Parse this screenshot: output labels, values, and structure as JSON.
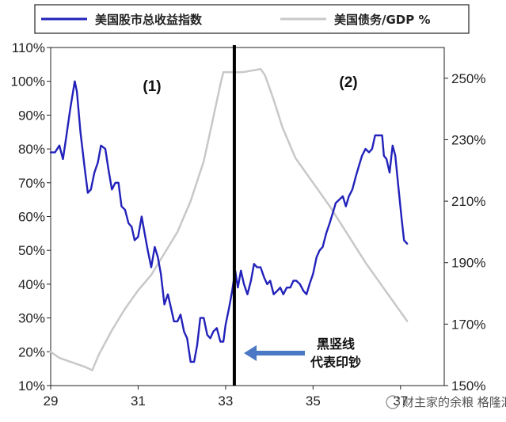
{
  "chart_data": {
    "type": "line",
    "legend": [
      {
        "label": "美国股市总收益指数",
        "color": "#2222bb"
      },
      {
        "label": "美国债务/GDP %",
        "color": "#c8c8c8"
      }
    ],
    "x": {
      "min": 29,
      "max": 38,
      "ticks": [
        "29",
        "31",
        "33",
        "35",
        "37"
      ],
      "tick_values": [
        29,
        31,
        33,
        35,
        37
      ]
    },
    "y_left": {
      "min": 10,
      "max": 110,
      "ticks": [
        "10%",
        "20%",
        "30%",
        "40%",
        "50%",
        "60%",
        "70%",
        "80%",
        "90%",
        "100%",
        "110%"
      ],
      "tick_values": [
        10,
        20,
        30,
        40,
        50,
        60,
        70,
        80,
        90,
        100,
        110
      ]
    },
    "y_right": {
      "min": 150,
      "max": 260,
      "ticks": [
        "150%",
        "170%",
        "190%",
        "210%",
        "230%",
        "250%"
      ],
      "tick_values": [
        150,
        170,
        190,
        210,
        230,
        250
      ]
    },
    "series": [
      {
        "name": "美国股市总收益指数",
        "axis": "left",
        "color": "#2222bb",
        "points": [
          [
            29.0,
            79
          ],
          [
            29.1,
            79
          ],
          [
            29.2,
            81
          ],
          [
            29.28,
            77
          ],
          [
            29.35,
            83
          ],
          [
            29.45,
            92
          ],
          [
            29.55,
            100
          ],
          [
            29.6,
            97
          ],
          [
            29.68,
            85
          ],
          [
            29.78,
            74
          ],
          [
            29.85,
            67
          ],
          [
            29.92,
            68
          ],
          [
            30.0,
            73
          ],
          [
            30.08,
            76
          ],
          [
            30.15,
            81
          ],
          [
            30.25,
            80
          ],
          [
            30.32,
            74
          ],
          [
            30.4,
            68
          ],
          [
            30.48,
            70
          ],
          [
            30.55,
            70
          ],
          [
            30.62,
            63
          ],
          [
            30.7,
            62
          ],
          [
            30.78,
            58
          ],
          [
            30.85,
            57
          ],
          [
            30.92,
            53
          ],
          [
            31.0,
            54
          ],
          [
            31.08,
            60
          ],
          [
            31.15,
            55
          ],
          [
            31.22,
            50
          ],
          [
            31.3,
            45
          ],
          [
            31.38,
            51
          ],
          [
            31.45,
            48
          ],
          [
            31.52,
            43
          ],
          [
            31.6,
            34
          ],
          [
            31.68,
            37
          ],
          [
            31.75,
            33
          ],
          [
            31.82,
            29
          ],
          [
            31.9,
            29
          ],
          [
            31.97,
            31
          ],
          [
            32.05,
            26
          ],
          [
            32.12,
            24
          ],
          [
            32.2,
            17
          ],
          [
            32.28,
            17
          ],
          [
            32.35,
            22
          ],
          [
            32.42,
            30
          ],
          [
            32.5,
            30
          ],
          [
            32.58,
            25
          ],
          [
            32.65,
            24
          ],
          [
            32.72,
            26
          ],
          [
            32.8,
            27
          ],
          [
            32.88,
            23
          ],
          [
            32.95,
            23
          ],
          [
            33.0,
            28
          ],
          [
            33.08,
            33
          ],
          [
            33.15,
            38
          ],
          [
            33.22,
            44
          ],
          [
            33.28,
            39
          ],
          [
            33.35,
            44
          ],
          [
            33.42,
            40
          ],
          [
            33.5,
            37
          ],
          [
            33.58,
            41
          ],
          [
            33.65,
            46
          ],
          [
            33.72,
            45
          ],
          [
            33.8,
            45
          ],
          [
            33.88,
            42
          ],
          [
            33.95,
            40
          ],
          [
            34.02,
            41
          ],
          [
            34.1,
            37
          ],
          [
            34.18,
            38
          ],
          [
            34.25,
            39
          ],
          [
            34.32,
            37
          ],
          [
            34.4,
            39
          ],
          [
            34.48,
            39
          ],
          [
            34.55,
            41
          ],
          [
            34.62,
            41
          ],
          [
            34.7,
            40
          ],
          [
            34.78,
            38
          ],
          [
            34.85,
            37
          ],
          [
            34.92,
            40
          ],
          [
            35.0,
            43
          ],
          [
            35.08,
            48
          ],
          [
            35.15,
            50
          ],
          [
            35.22,
            51
          ],
          [
            35.3,
            55
          ],
          [
            35.38,
            58
          ],
          [
            35.45,
            61
          ],
          [
            35.52,
            64
          ],
          [
            35.6,
            65
          ],
          [
            35.68,
            66
          ],
          [
            35.75,
            63
          ],
          [
            35.82,
            66
          ],
          [
            35.9,
            68
          ],
          [
            35.98,
            72
          ],
          [
            36.05,
            75
          ],
          [
            36.12,
            78
          ],
          [
            36.2,
            80
          ],
          [
            36.28,
            79
          ],
          [
            36.35,
            80
          ],
          [
            36.42,
            84
          ],
          [
            36.5,
            84
          ],
          [
            36.58,
            84
          ],
          [
            36.62,
            78
          ],
          [
            36.68,
            77
          ],
          [
            36.75,
            73
          ],
          [
            36.82,
            81
          ],
          [
            36.88,
            78
          ],
          [
            36.95,
            69
          ],
          [
            37.02,
            60
          ],
          [
            37.08,
            53
          ],
          [
            37.15,
            52
          ]
        ]
      },
      {
        "name": "美国债务/GDP %",
        "axis": "right",
        "color": "#c8c8c8",
        "points": [
          [
            29.0,
            161
          ],
          [
            29.2,
            159
          ],
          [
            29.4,
            158
          ],
          [
            29.6,
            157
          ],
          [
            29.8,
            156
          ],
          [
            29.95,
            155
          ],
          [
            30.1,
            160
          ],
          [
            30.4,
            168
          ],
          [
            30.7,
            175
          ],
          [
            31.0,
            181
          ],
          [
            31.3,
            186
          ],
          [
            31.6,
            193
          ],
          [
            31.9,
            200
          ],
          [
            32.2,
            210
          ],
          [
            32.5,
            223
          ],
          [
            32.7,
            236
          ],
          [
            32.88,
            248
          ],
          [
            32.95,
            252
          ],
          [
            33.4,
            252
          ],
          [
            33.8,
            253
          ],
          [
            33.9,
            251
          ],
          [
            34.1,
            243
          ],
          [
            34.3,
            234
          ],
          [
            34.6,
            224
          ],
          [
            35.0,
            216
          ],
          [
            35.4,
            208
          ],
          [
            35.8,
            199
          ],
          [
            36.2,
            190
          ],
          [
            36.6,
            182
          ],
          [
            37.0,
            174
          ],
          [
            37.15,
            171
          ]
        ]
      }
    ],
    "annotations": {
      "period_1": "(1)",
      "period_2": "(2)",
      "vline_x": 33.2,
      "arrow_text_line1": "黑竖线",
      "arrow_text_line2": "代表印钞"
    }
  },
  "watermark": "财主家的余粮 格隆汇"
}
